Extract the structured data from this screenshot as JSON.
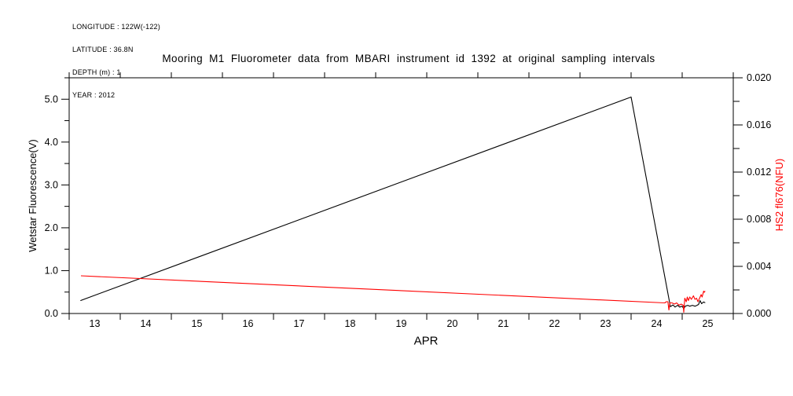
{
  "header": {
    "meta_lines": [
      "LONGITUDE : 122W(-122)",
      "LATITUDE : 36.8N",
      "DEPTH (m) : 1",
      "YEAR : 2012"
    ]
  },
  "title": "Mooring M1 Fluorometer data from MBARI instrument id 1392 at original sampling intervals",
  "chart_data": {
    "type": "line",
    "background": "#ffffff",
    "grid": false,
    "legend": "none",
    "x_axis": {
      "label": "APR",
      "range": [
        13,
        26
      ],
      "tick_step_days": 1,
      "tick_labels": [
        "13",
        "14",
        "15",
        "16",
        "17",
        "18",
        "19",
        "20",
        "21",
        "22",
        "23",
        "24",
        "25"
      ],
      "note": "ticks at day boundaries, labels centered at noon of each day"
    },
    "y_left": {
      "label": "Wetstar Fluorescence(V)",
      "range": [
        0,
        5.5
      ],
      "major_tick_step": 1.0,
      "minor_tick_step": 0.5,
      "tick_labels": [
        "0.0",
        "1.0",
        "2.0",
        "3.0",
        "4.0",
        "5.0"
      ],
      "label_color": "#000000"
    },
    "y_right": {
      "label": "HS2 fl676(NFU)",
      "range": [
        0,
        0.02
      ],
      "major_tick_step": 0.004,
      "minor_tick_step": 0.002,
      "tick_labels": [
        "0.000",
        "0.004",
        "0.008",
        "0.012",
        "0.016",
        "0.020"
      ],
      "label_color": "#ff0000"
    },
    "series": [
      {
        "name": "Wetstar Fluorescence(V)",
        "axis": "left",
        "color": "#000000",
        "points": [
          [
            13.22,
            0.3
          ],
          [
            24.0,
            5.05
          ],
          [
            24.77,
            0.16
          ],
          [
            24.82,
            0.2
          ],
          [
            24.86,
            0.15
          ],
          [
            24.91,
            0.19
          ],
          [
            24.95,
            0.15
          ],
          [
            25.0,
            0.17
          ],
          [
            25.03,
            0.11
          ],
          [
            25.06,
            0.17
          ],
          [
            25.11,
            0.19
          ],
          [
            25.15,
            0.17
          ],
          [
            25.2,
            0.19
          ],
          [
            25.25,
            0.17
          ],
          [
            25.29,
            0.19
          ],
          [
            25.32,
            0.21
          ],
          [
            25.35,
            0.3
          ],
          [
            25.38,
            0.23
          ],
          [
            25.42,
            0.27
          ],
          [
            25.45,
            0.25
          ]
        ]
      },
      {
        "name": "HS2 fl676(NFU)",
        "axis": "right",
        "color": "#ff0000",
        "points": [
          [
            13.23,
            0.0032
          ],
          [
            24.66,
            0.0009
          ],
          [
            24.69,
            0.001
          ],
          [
            24.72,
            0.001
          ],
          [
            24.74,
            0.0003
          ],
          [
            24.76,
            0.0009
          ],
          [
            24.8,
            0.0009
          ],
          [
            24.85,
            0.0008
          ],
          [
            24.89,
            0.0009
          ],
          [
            24.94,
            0.0007
          ],
          [
            24.98,
            0.0008
          ],
          [
            25.02,
            0.0007
          ],
          [
            25.03,
            0.0001
          ],
          [
            25.05,
            0.0013
          ],
          [
            25.08,
            0.001
          ],
          [
            25.1,
            0.0014
          ],
          [
            25.12,
            0.0011
          ],
          [
            25.15,
            0.0014
          ],
          [
            25.18,
            0.0012
          ],
          [
            25.22,
            0.0015
          ],
          [
            25.25,
            0.0012
          ],
          [
            25.28,
            0.0013
          ],
          [
            25.31,
            0.001
          ],
          [
            25.34,
            0.0013
          ],
          [
            25.37,
            0.0016
          ],
          [
            25.39,
            0.0014
          ],
          [
            25.42,
            0.0019
          ],
          [
            25.43,
            0.0018
          ],
          [
            25.45,
            0.0019
          ]
        ]
      }
    ]
  }
}
